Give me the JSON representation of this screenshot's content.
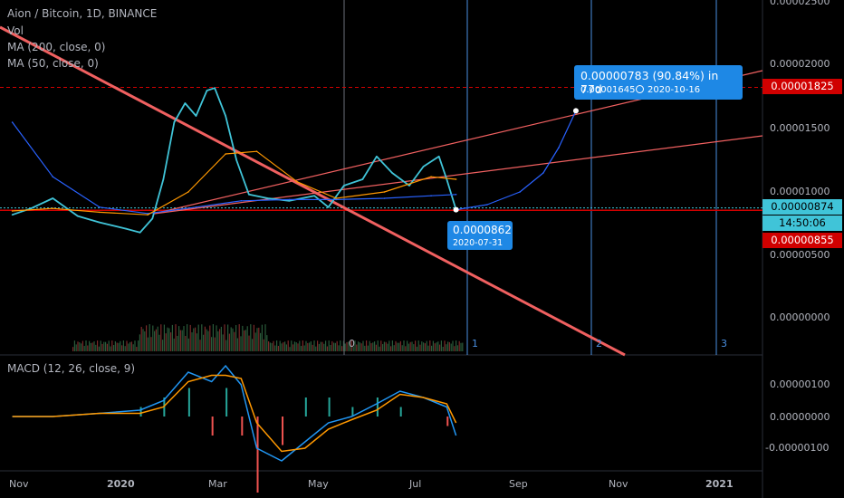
{
  "header": {
    "symbol": "Aion / Bitcoin, 1D, BINANCE",
    "indicators": [
      "Vol",
      "MA (200, close, 0)",
      "MA (50, close, 0)"
    ],
    "macd_label": "MACD (12, 26, close, 9)"
  },
  "colors": {
    "price": "#40c4d8",
    "ma200": "#2962ff",
    "ma50": "#ff9800",
    "trendline": "#f06060",
    "vertical_line": "#4a90e2",
    "macd_line": "#2196f3",
    "signal_line": "#ff9800",
    "red_tag": "#d00000",
    "blue_tag": "#1e88e5"
  },
  "price_axis": {
    "labels": [
      "0.00002500",
      "0.00002000",
      "0.00001500",
      "0.00001000",
      "0.00000500",
      "0.00000000"
    ],
    "tags": [
      {
        "label": "0.00001825",
        "color": "#d00000"
      },
      {
        "label": "0.00000874",
        "color": "#40c4d8"
      },
      {
        "label": "14:50:06",
        "color": "#40c4d8"
      },
      {
        "label": "0.00000855",
        "color": "#d00000"
      }
    ]
  },
  "macd_axis": {
    "labels": [
      "0.00000100",
      "0.00000000",
      "-0.00000100"
    ]
  },
  "time_axis": {
    "labels": [
      "Nov",
      "2020",
      "Mar",
      "May",
      "Jul",
      "Sep",
      "Nov",
      "2021"
    ]
  },
  "markers": [
    "0",
    "1",
    "2",
    "3"
  ],
  "callouts": {
    "projection": {
      "change": "0.00000783 (90.84%) in 77d",
      "target_price": "0.00001645",
      "target_date": "2020-10-16",
      "clock_icon": "clock-icon"
    },
    "current": {
      "price": "0.0000862",
      "date": "2020-07-31"
    }
  },
  "chart_data": {
    "type": "line",
    "title": "Aion / Bitcoin, 1D, BINANCE",
    "xlabel": "",
    "ylabel": "",
    "ylim": [
      3.5e-06,
      2.7e-05
    ],
    "grid": false,
    "series": [
      {
        "name": "Aion / Bitcoin",
        "x": [
          "2019-10-20",
          "2019-11-01",
          "2019-11-15",
          "2019-12-01",
          "2019-12-15",
          "2020-01-01",
          "2020-01-10",
          "2020-01-18",
          "2020-01-25",
          "2020-02-01",
          "2020-02-08",
          "2020-02-15",
          "2020-02-22",
          "2020-02-27",
          "2020-03-05",
          "2020-03-12",
          "2020-03-20",
          "2020-04-01",
          "2020-04-15",
          "2020-05-01",
          "2020-05-10",
          "2020-05-20",
          "2020-06-01",
          "2020-06-10",
          "2020-06-20",
          "2020-07-01",
          "2020-07-10",
          "2020-07-20",
          "2020-07-25",
          "2020-07-31"
        ],
        "values": [
          8.2e-06,
          8.7e-06,
          9.5e-06,
          8.1e-06,
          7.6e-06,
          7.1e-06,
          6.8e-06,
          7.9e-06,
          1.1e-05,
          1.55e-05,
          1.7e-05,
          1.6e-05,
          1.8e-05,
          1.82e-05,
          1.6e-05,
          1.25e-05,
          9.8e-06,
          9.5e-06,
          9.3e-06,
          9.7e-06,
          8.8e-06,
          1.05e-05,
          1.1e-05,
          1.28e-05,
          1.15e-05,
          1.05e-05,
          1.2e-05,
          1.28e-05,
          1.1e-05,
          8.6e-06
        ]
      },
      {
        "name": "MA (200, close, 0)",
        "x": [
          "2019-10-20",
          "2019-11-15",
          "2019-12-15",
          "2020-01-15",
          "2020-02-15",
          "2020-03-15",
          "2020-04-15",
          "2020-05-15",
          "2020-06-15",
          "2020-07-15",
          "2020-07-31"
        ],
        "values": [
          1.55e-05,
          1.12e-05,
          8.8e-06,
          8.3e-06,
          8.8e-06,
          9.3e-06,
          9.4e-06,
          9.4e-06,
          9.5e-06,
          9.7e-06,
          9.8e-06
        ]
      },
      {
        "name": "MA (50, close, 0)",
        "x": [
          "2019-10-20",
          "2019-11-15",
          "2019-12-15",
          "2020-01-15",
          "2020-02-10",
          "2020-03-05",
          "2020-03-25",
          "2020-04-20",
          "2020-05-15",
          "2020-06-15",
          "2020-07-15",
          "2020-07-31"
        ],
        "values": [
          8.5e-06,
          8.7e-06,
          8.4e-06,
          8.2e-06,
          1e-05,
          1.3e-05,
          1.32e-05,
          1.08e-05,
          9.5e-06,
          1e-05,
          1.12e-05,
          1.1e-05
        ]
      },
      {
        "name": "Projection",
        "x": [
          "2020-07-31",
          "2020-08-20",
          "2020-09-10",
          "2020-09-25",
          "2020-10-05",
          "2020-10-16"
        ],
        "values": [
          8.6e-06,
          9e-06,
          1e-05,
          1.15e-05,
          1.35e-05,
          1.64e-05
        ]
      }
    ],
    "macd": {
      "ylim": [
        -1.4e-06,
        1.7e-06
      ],
      "x": [
        "2019-10-20",
        "2019-11-15",
        "2019-12-15",
        "2020-01-10",
        "2020-01-25",
        "2020-02-10",
        "2020-02-25",
        "2020-03-05",
        "2020-03-15",
        "2020-03-25",
        "2020-04-10",
        "2020-04-25",
        "2020-05-10",
        "2020-05-25",
        "2020-06-10",
        "2020-06-25",
        "2020-07-10",
        "2020-07-25",
        "2020-07-31"
      ],
      "macd": [
        0.0,
        0.0,
        1e-07,
        2e-07,
        5e-07,
        1.4e-06,
        1.1e-06,
        1.6e-06,
        1e-06,
        -1e-06,
        -1.4e-06,
        -8e-07,
        -2e-07,
        0.0,
        4e-07,
        8e-07,
        6e-07,
        3e-07,
        -6e-07
      ],
      "signal": [
        0.0,
        0.0,
        1e-07,
        1e-07,
        3e-07,
        1.1e-06,
        1.3e-06,
        1.3e-06,
        1.2e-06,
        -2e-07,
        -1.1e-06,
        -1e-06,
        -4e-07,
        -1e-07,
        2e-07,
        7e-07,
        6e-07,
        4e-07,
        -2e-07
      ]
    }
  }
}
